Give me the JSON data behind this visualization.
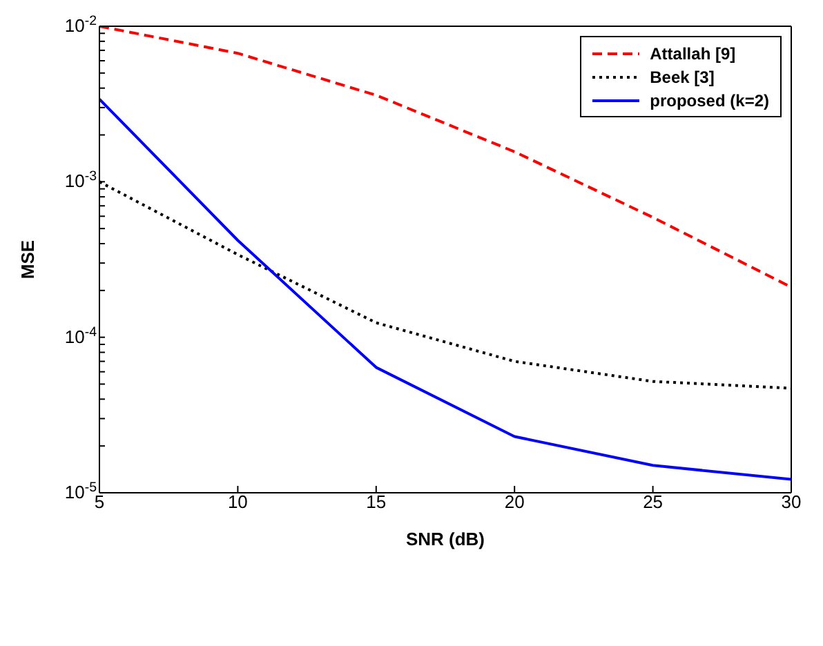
{
  "chart_data": {
    "type": "line",
    "xlabel": "SNR (dB)",
    "ylabel": "MSE",
    "log": "y",
    "legend": "top right",
    "marker": "none",
    "x": [
      5,
      10,
      15,
      20,
      25,
      30
    ],
    "xlim": [
      5,
      30
    ],
    "xticks": [
      5,
      10,
      15,
      20,
      25,
      30
    ],
    "ylim": [
      1e-05,
      0.01
    ],
    "yticks": [
      {
        "value": 1e-05,
        "label": "10$^{-5}$"
      },
      {
        "value": 2e-05,
        "label": null
      },
      {
        "value": 3e-05,
        "label": null
      },
      {
        "value": 4e-05,
        "label": null
      },
      {
        "value": 5e-05,
        "label": null
      },
      {
        "value": 6e-05,
        "label": null
      },
      {
        "value": 7e-05,
        "label": null
      },
      {
        "value": 8e-05,
        "label": null
      },
      {
        "value": 9e-05,
        "label": null
      },
      {
        "value": 0.0001,
        "label": "10$^{-4}$"
      },
      {
        "value": 0.0002,
        "label": null
      },
      {
        "value": 0.0003,
        "label": null
      },
      {
        "value": 0.0004,
        "label": null
      },
      {
        "value": 0.0005,
        "label": null
      },
      {
        "value": 0.0006,
        "label": null
      },
      {
        "value": 0.0007,
        "label": null
      },
      {
        "value": 0.0008,
        "label": null
      },
      {
        "value": 0.0009,
        "label": null
      },
      {
        "value": 0.001,
        "label": "10$^{-3}$"
      },
      {
        "value": 0.002,
        "label": null
      },
      {
        "value": 0.003,
        "label": null
      },
      {
        "value": 0.004,
        "label": null
      },
      {
        "value": 0.005,
        "label": null
      },
      {
        "value": 0.006,
        "label": null
      },
      {
        "value": 0.007,
        "label": null
      },
      {
        "value": 0.008,
        "label": null
      },
      {
        "value": 0.009,
        "label": null
      },
      {
        "value": 0.01,
        "label": "10$^{-2}$"
      }
    ],
    "series": [
      {
        "name": "Attallah [9]",
        "color": "#ff0000",
        "line_style": "dashed",
        "values": [
          0.01,
          0.0067,
          0.0036,
          0.00156,
          0.00059,
          0.00021
        ]
      },
      {
        "name": "Beek [3]",
        "color": "#000000",
        "line_style": "dotted",
        "values": [
          0.001,
          0.00034,
          0.000124,
          7e-05,
          5.2e-05,
          4.7e-05
        ]
      },
      {
        "name": "proposed (k=2)",
        "color": "#0000ff",
        "line_style": "solid",
        "values": [
          0.0034,
          0.00042,
          6.4e-05,
          2.3e-05,
          1.5e-05,
          1.22e-05
        ]
      }
    ]
  }
}
